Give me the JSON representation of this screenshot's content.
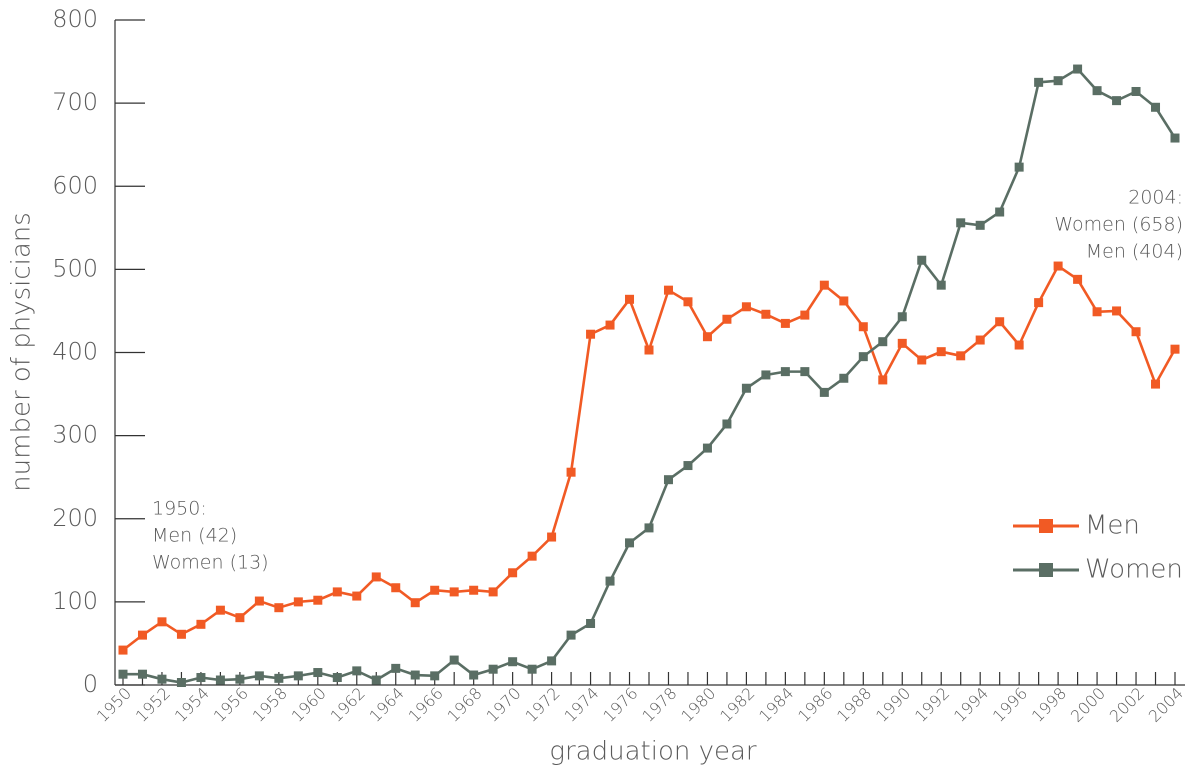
{
  "chart_data": {
    "type": "line",
    "x_label": "graduation year",
    "y_label": "number of physicians",
    "x": [
      1950,
      1951,
      1952,
      1953,
      1954,
      1955,
      1956,
      1957,
      1958,
      1959,
      1960,
      1961,
      1962,
      1963,
      1964,
      1965,
      1966,
      1967,
      1968,
      1969,
      1970,
      1971,
      1972,
      1973,
      1974,
      1975,
      1976,
      1977,
      1978,
      1979,
      1980,
      1981,
      1982,
      1983,
      1984,
      1985,
      1986,
      1987,
      1988,
      1989,
      1990,
      1991,
      1992,
      1993,
      1994,
      1995,
      1996,
      1997,
      1998,
      1999,
      2000,
      2001,
      2002,
      2003,
      2004
    ],
    "series": [
      {
        "name": "Men",
        "color": "#f15a24",
        "values": [
          42,
          60,
          76,
          61,
          73,
          90,
          81,
          101,
          93,
          100,
          102,
          112,
          107,
          130,
          117,
          99,
          114,
          112,
          114,
          112,
          135,
          155,
          178,
          256,
          422,
          433,
          464,
          403,
          475,
          461,
          419,
          440,
          455,
          446,
          435,
          445,
          481,
          462,
          431,
          367,
          411,
          391,
          401,
          396,
          415,
          437,
          409,
          460,
          504,
          488,
          449,
          450,
          425,
          362,
          404
        ]
      },
      {
        "name": "Women",
        "color": "#5a6e64",
        "values": [
          13,
          13,
          7,
          3,
          9,
          6,
          7,
          11,
          8,
          11,
          15,
          9,
          17,
          6,
          20,
          12,
          11,
          30,
          12,
          19,
          28,
          19,
          29,
          60,
          74,
          125,
          171,
          189,
          247,
          264,
          285,
          314,
          357,
          373,
          377,
          377,
          352,
          369,
          395,
          413,
          443,
          511,
          481,
          556,
          553,
          569,
          623,
          725,
          727,
          741,
          715,
          703,
          714,
          695,
          658
        ]
      }
    ],
    "xlim": [
      1950,
      2004
    ],
    "xticks": [
      1950,
      1952,
      1954,
      1956,
      1958,
      1960,
      1962,
      1964,
      1966,
      1968,
      1970,
      1972,
      1974,
      1976,
      1978,
      1980,
      1982,
      1984,
      1986,
      1988,
      1990,
      1992,
      1994,
      1996,
      1998,
      2000,
      2002,
      2004
    ],
    "x_minor_ticks": [
      1951,
      1953,
      1955,
      1957,
      1959,
      1961,
      1963,
      1965,
      1967,
      1969,
      1971,
      1973,
      1975,
      1977,
      1979,
      1981,
      1983,
      1985,
      1987,
      1989,
      1991,
      1993,
      1995,
      1997,
      1999,
      2001,
      2003
    ],
    "ylim": [
      0,
      800
    ],
    "yticks": [
      0,
      100,
      200,
      300,
      400,
      500,
      600,
      700,
      800
    ],
    "legend": "lower right",
    "annotations": [
      {
        "lines": [
          "1950:",
          "Men (42)",
          "Women (13)"
        ]
      },
      {
        "lines": [
          "2004:",
          "Women (658)",
          "Men (404)"
        ]
      }
    ]
  }
}
